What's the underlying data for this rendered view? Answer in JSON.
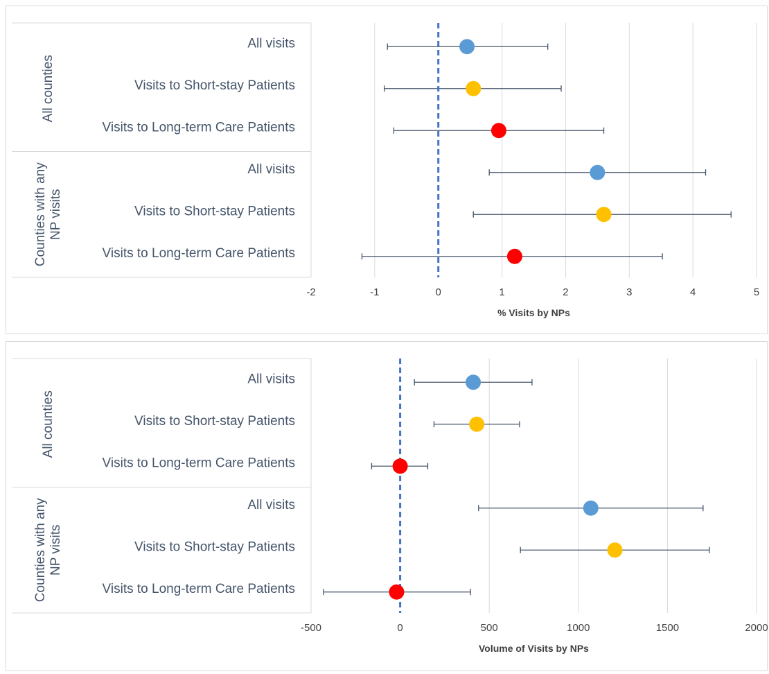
{
  "colors": {
    "all_visits": "#5b9bd5",
    "short_stay": "#ffc000",
    "long_term": "#ff0000",
    "errorbar": "#44546a",
    "zero_line": "#4472c4",
    "grid": "#d9d9d9"
  },
  "chart_data": [
    {
      "type": "scatter",
      "variant": "forest-plot",
      "xlabel": "% Visits by NPs",
      "xlim": [
        -2,
        5
      ],
      "xticks": [
        -2,
        -1,
        0,
        1,
        2,
        3,
        4,
        5
      ],
      "xtick_labels": [
        "-2",
        "-1",
        "0",
        "1",
        "2",
        "3",
        "4",
        "5"
      ],
      "reference_line": 0,
      "grid": "vertical",
      "groups": [
        {
          "label_lines": [
            "All counties"
          ],
          "rows": [
            {
              "label": "All visits",
              "estimate": 0.45,
              "ci_low": -0.8,
              "ci_high": 1.72,
              "color_key": "all_visits"
            },
            {
              "label": "Visits to Short-stay Patients",
              "estimate": 0.55,
              "ci_low": -0.85,
              "ci_high": 1.93,
              "color_key": "short_stay"
            },
            {
              "label": "Visits to Long-term Care Patients",
              "estimate": 0.95,
              "ci_low": -0.7,
              "ci_high": 2.6,
              "color_key": "long_term"
            }
          ]
        },
        {
          "label_lines": [
            "Counties with any",
            "NP visits"
          ],
          "rows": [
            {
              "label": "All visits",
              "estimate": 2.5,
              "ci_low": 0.8,
              "ci_high": 4.2,
              "color_key": "all_visits"
            },
            {
              "label": "Visits to Short-stay Patients",
              "estimate": 2.6,
              "ci_low": 0.55,
              "ci_high": 4.6,
              "color_key": "short_stay"
            },
            {
              "label": "Visits to Long-term Care Patients",
              "estimate": 1.2,
              "ci_low": -1.2,
              "ci_high": 3.52,
              "color_key": "long_term"
            }
          ]
        }
      ]
    },
    {
      "type": "scatter",
      "variant": "forest-plot",
      "xlabel": "Volume of Visits by NPs",
      "xlim": [
        -500,
        2000
      ],
      "xticks": [
        -500,
        0,
        500,
        1000,
        1500,
        2000
      ],
      "xtick_labels": [
        "-500",
        "0",
        "500",
        "1000",
        "1500",
        "2000"
      ],
      "reference_line": 0,
      "grid": "vertical",
      "groups": [
        {
          "label_lines": [
            "All counties"
          ],
          "rows": [
            {
              "label": "All visits",
              "estimate": 410,
              "ci_low": 80,
              "ci_high": 740,
              "color_key": "all_visits"
            },
            {
              "label": "Visits to Short-stay Patients",
              "estimate": 430,
              "ci_low": 190,
              "ci_high": 670,
              "color_key": "short_stay"
            },
            {
              "label": "Visits to Long-term Care Patients",
              "estimate": 0,
              "ci_low": -160,
              "ci_high": 155,
              "color_key": "long_term"
            }
          ]
        },
        {
          "label_lines": [
            "Counties with any",
            "NP visits"
          ],
          "rows": [
            {
              "label": "All visits",
              "estimate": 1070,
              "ci_low": 440,
              "ci_high": 1700,
              "color_key": "all_visits"
            },
            {
              "label": "Visits to Short-stay Patients",
              "estimate": 1205,
              "ci_low": 675,
              "ci_high": 1735,
              "color_key": "short_stay"
            },
            {
              "label": "Visits to Long-term Care Patients",
              "estimate": -20,
              "ci_low": -430,
              "ci_high": 395,
              "color_key": "long_term"
            }
          ]
        }
      ]
    }
  ]
}
